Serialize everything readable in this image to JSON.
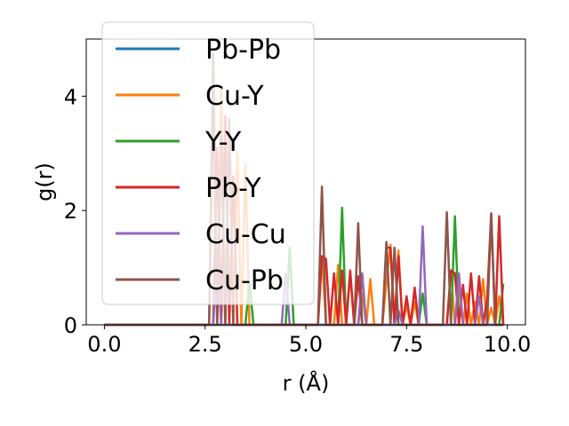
{
  "chart_data": {
    "type": "line",
    "xlabel": "r (Å)",
    "ylabel": "g(r)",
    "xlim": [
      -0.45,
      10.45
    ],
    "ylim": [
      0,
      5.0
    ],
    "xticks": [
      0.0,
      2.5,
      5.0,
      7.5,
      10.0
    ],
    "xtick_labels": [
      "0.0",
      "2.5",
      "5.0",
      "7.5",
      "10.0"
    ],
    "yticks": [
      0,
      2,
      4
    ],
    "ytick_labels": [
      "0",
      "2",
      "4"
    ],
    "legend_position": "upper-left",
    "series": [
      {
        "name": "Pb-Pb",
        "color": "#1f77b4",
        "x": [
          0,
          9.9
        ],
        "y": [
          0,
          0
        ]
      },
      {
        "name": "Cu-Y",
        "color": "#ff7f0e",
        "x": [
          0,
          2.6,
          2.7,
          2.8,
          2.9,
          3.0,
          3.1,
          3.2,
          3.3,
          3.4,
          3.5,
          3.6,
          3.7,
          5.3,
          5.4,
          5.5,
          5.6,
          5.7,
          5.8,
          5.9,
          6.0,
          6.1,
          6.2,
          6.3,
          6.4,
          6.5,
          6.6,
          6.7,
          6.8,
          6.9,
          7.0,
          7.1,
          7.2,
          7.3,
          7.4,
          7.5,
          7.6,
          7.7,
          7.8,
          7.9,
          8.0,
          8.1,
          8.5,
          8.6,
          8.7,
          8.8,
          8.9,
          9.0,
          9.1,
          9.2,
          9.3,
          9.4,
          9.5,
          9.6,
          9.7,
          9.8,
          9.9
        ],
        "y": [
          0,
          0,
          3.8,
          0,
          4.1,
          0,
          3.5,
          0,
          3.0,
          0,
          2.8,
          0,
          0,
          0,
          1.2,
          0,
          0,
          0,
          1.05,
          0,
          0,
          0.9,
          0,
          0,
          0.55,
          0,
          0.8,
          0,
          0,
          0,
          0.75,
          1.4,
          0,
          1.3,
          0,
          0.35,
          0,
          0.4,
          0,
          0,
          0,
          0,
          0,
          0.95,
          0,
          0.7,
          0,
          0.55,
          0,
          0.4,
          0,
          0.8,
          0,
          0.3,
          0,
          0.5,
          0
        ]
      },
      {
        "name": "Y-Y",
        "color": "#2ca02c",
        "x": [
          0,
          3.5,
          3.6,
          3.7,
          4.5,
          4.6,
          4.7,
          5.8,
          5.9,
          6.0,
          7.8,
          7.9,
          8.0,
          8.6,
          8.7,
          8.8,
          9.8,
          9.9
        ],
        "y": [
          0,
          0,
          0.75,
          0,
          0,
          1.35,
          0,
          0,
          2.05,
          0,
          0,
          0.55,
          0,
          0,
          1.9,
          0,
          0,
          0.72
        ]
      },
      {
        "name": "Pb-Y",
        "color": "#d62728",
        "x": [
          0,
          2.7,
          2.8,
          2.9,
          3.0,
          3.1,
          3.2,
          3.3,
          3.4,
          5.3,
          5.4,
          5.5,
          5.6,
          5.7,
          5.8,
          5.9,
          6.0,
          6.1,
          6.2,
          6.3,
          6.4,
          6.5,
          6.9,
          7.0,
          7.1,
          7.2,
          7.3,
          7.4,
          7.5,
          7.6,
          7.7,
          7.8,
          8.5,
          8.6,
          8.7,
          8.8,
          8.9,
          9.0,
          9.1,
          9.2,
          9.3,
          9.4,
          9.5,
          9.6,
          9.7,
          9.8,
          9.9
        ],
        "y": [
          0,
          0,
          3.1,
          0,
          3.65,
          0,
          2.6,
          0,
          0,
          0,
          1.2,
          1.15,
          0,
          0.9,
          0,
          0.95,
          0,
          0.95,
          0,
          0.85,
          0,
          0,
          0,
          1.35,
          1.35,
          0,
          1.2,
          0,
          0.5,
          0,
          0.65,
          0,
          0,
          0.95,
          0.9,
          0,
          0.7,
          0,
          0.9,
          0,
          0.85,
          0,
          0.45,
          1.95,
          0,
          1.9,
          0
        ]
      },
      {
        "name": "Cu-Cu",
        "color": "#9467bd",
        "x": [
          0,
          2.7,
          2.8,
          2.9,
          4.4,
          4.5,
          4.6,
          6.3,
          6.4,
          6.5,
          7.2,
          7.3,
          7.4,
          7.8,
          7.9,
          8.0,
          8.7,
          8.8,
          8.9,
          9.2,
          9.3,
          9.4,
          9.9
        ],
        "y": [
          0,
          0,
          1.3,
          0,
          0,
          0.9,
          0,
          0,
          0.9,
          0,
          0,
          0.25,
          0,
          0,
          1.72,
          0,
          0,
          0.9,
          0,
          0,
          0.5,
          0,
          0
        ]
      },
      {
        "name": "Cu-Pb",
        "color": "#8c564b",
        "x": [
          0,
          2.6,
          2.7,
          2.8,
          2.9,
          3.0,
          3.1,
          3.2,
          3.3,
          5.3,
          5.4,
          5.5,
          6.2,
          6.3,
          6.4,
          6.9,
          7.0,
          7.1,
          7.2,
          7.3,
          7.4,
          8.4,
          8.5,
          8.6,
          9.5,
          9.6,
          9.7,
          9.9
        ],
        "y": [
          0,
          0,
          4.75,
          0,
          3.3,
          0,
          3.6,
          0,
          0,
          0,
          2.42,
          0,
          0,
          1.78,
          0,
          0,
          1.45,
          0,
          1.35,
          0,
          0,
          0,
          1.97,
          0,
          0,
          1.93,
          0,
          0
        ]
      }
    ]
  }
}
